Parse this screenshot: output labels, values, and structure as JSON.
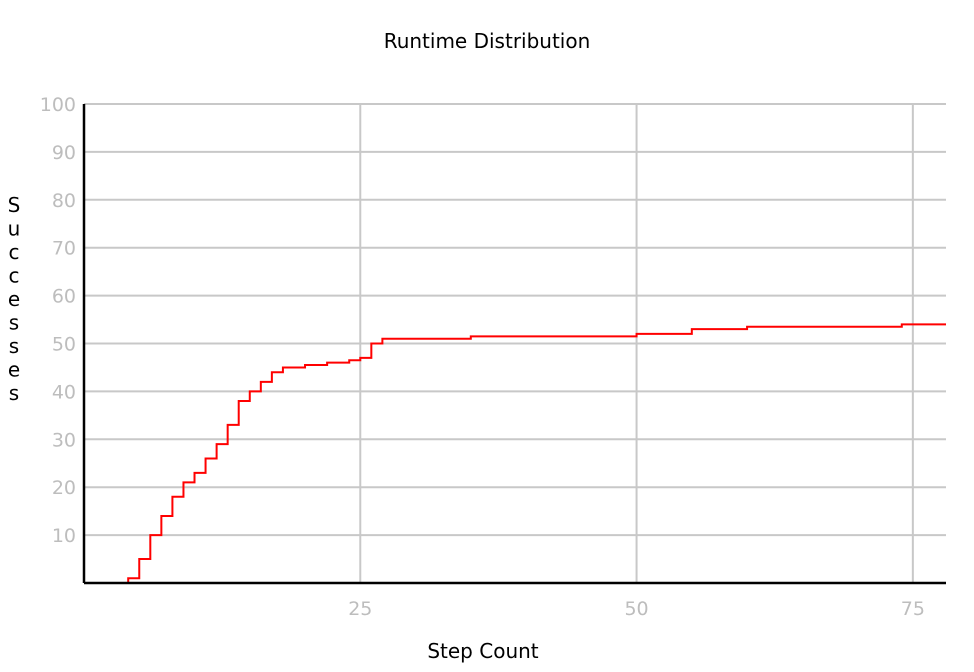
{
  "chart_data": {
    "type": "line",
    "title": "Runtime Distribution",
    "xlabel": "Step Count",
    "ylabel": "Successes",
    "xlim": [
      0,
      78
    ],
    "ylim": [
      0,
      100
    ],
    "x_ticks": [
      25,
      50,
      75
    ],
    "y_ticks": [
      10,
      20,
      30,
      40,
      50,
      60,
      70,
      80,
      90,
      100
    ],
    "grid": true,
    "series": [
      {
        "color": "#ff0000",
        "step": true,
        "x": [
          4,
          5,
          6,
          7,
          8,
          9,
          10,
          11,
          12,
          13,
          14,
          15,
          16,
          17,
          18,
          20,
          22,
          24,
          25,
          26,
          27,
          30,
          35,
          40,
          45,
          50,
          55,
          60,
          65,
          70,
          74,
          78
        ],
        "y": [
          1,
          5,
          10,
          14,
          18,
          21,
          23,
          26,
          29,
          33,
          38,
          40,
          42,
          44,
          45,
          45.5,
          46,
          46.5,
          47,
          50,
          51,
          51,
          51.5,
          51.5,
          51.5,
          52,
          53,
          53.5,
          53.5,
          53.5,
          54,
          54
        ]
      }
    ]
  }
}
